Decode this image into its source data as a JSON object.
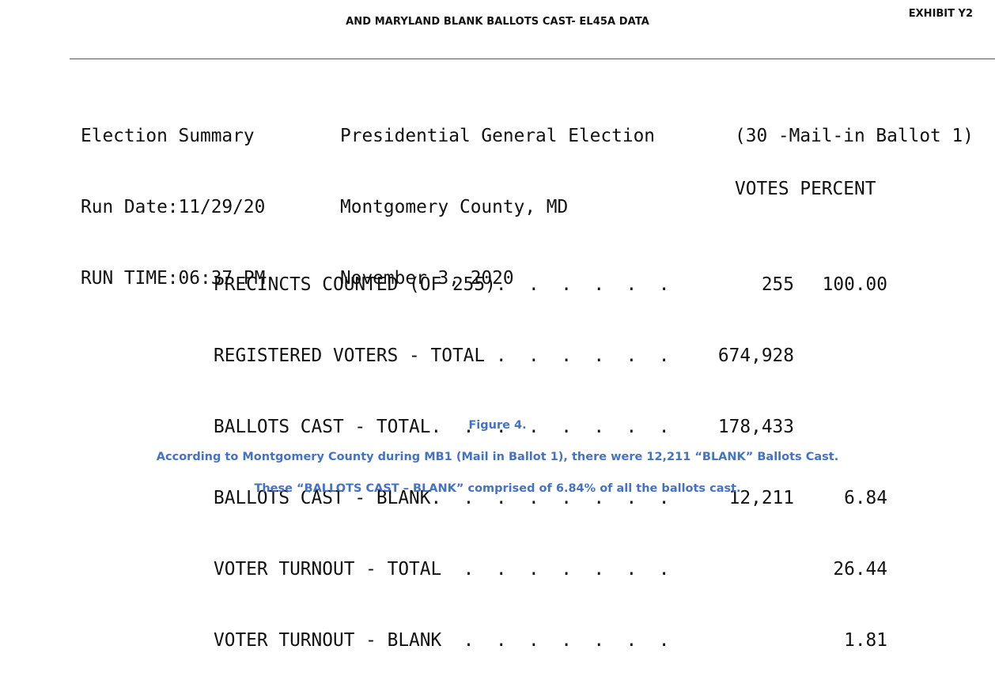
{
  "document": {
    "title": "AND MARYLAND BLANK BALLOTS CAST- EL45A DATA",
    "exhibit": "EXHIBIT Y2"
  },
  "report": {
    "header": [
      {
        "col1": "Election Summary",
        "col2": "Presidential General Election",
        "col3": "(30 -Mail-in Ballot 1)"
      },
      {
        "col1": "Run Date:11/29/20",
        "col2": "Montgomery County, MD",
        "col3": ""
      },
      {
        "col1": "RUN TIME:06:37 PM",
        "col2": "November 3, 2020",
        "col3": ""
      }
    ],
    "columns": {
      "votes": "VOTES",
      "percent": "PERCENT"
    },
    "rows": [
      {
        "label": "PRECINCTS COUNTED (OF 255).  .  .  .  .  .",
        "votes": "255",
        "percent": "100.00"
      },
      {
        "label": "REGISTERED VOTERS - TOTAL .  .  .  .  .  .",
        "votes": "674,928",
        "percent": ""
      },
      {
        "label": "BALLOTS CAST - TOTAL.  .  .  .  .  .  .  .",
        "votes": "178,433",
        "percent": ""
      },
      {
        "label": "BALLOTS CAST - BLANK.  .  .  .  .  .  .  .",
        "votes": "12,211",
        "percent": "6.84"
      },
      {
        "label": "VOTER TURNOUT - TOTAL  .  .  .  .  .  .  .",
        "votes": "",
        "percent": "26.44"
      },
      {
        "label": "VOTER TURNOUT - BLANK  .  .  .  .  .  .  .",
        "votes": "",
        "percent": "1.81"
      }
    ]
  },
  "captions": {
    "figure": "Figure 4.",
    "line1": "According to Montgomery County during MB1 (Mail in Ballot 1), there were 12,211 “BLANK” Ballots Cast.",
    "line2": "These “BALLOTS CAST – BLANK” comprised of 6.84% of all the ballots cast."
  }
}
